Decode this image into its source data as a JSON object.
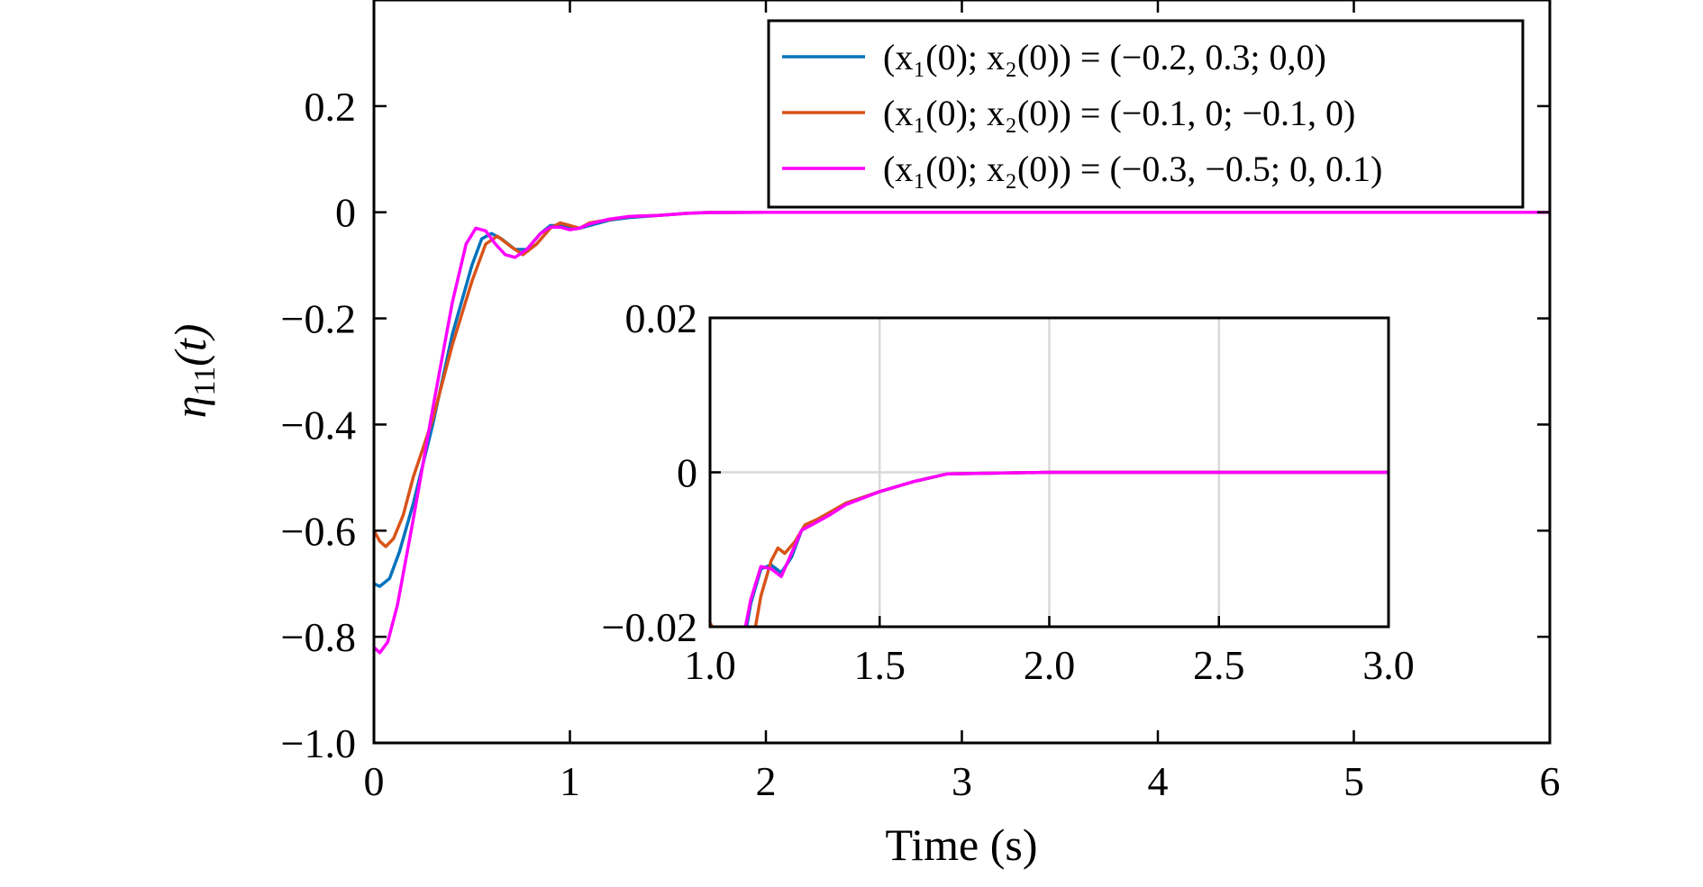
{
  "chart_data": [
    {
      "id": "main",
      "type": "line",
      "title": "",
      "xlabel": "Time (s)",
      "ylabel": {
        "base": "η",
        "sub": "11",
        "rest": "(t)"
      },
      "xlim": [
        0,
        6
      ],
      "ylim": [
        -1.0,
        0.4
      ],
      "xticks": [
        {
          "value": 0,
          "label": "0"
        },
        {
          "value": 1,
          "label": "1"
        },
        {
          "value": 2,
          "label": "2"
        },
        {
          "value": 3,
          "label": "3"
        },
        {
          "value": 4,
          "label": "4"
        },
        {
          "value": 5,
          "label": "5"
        },
        {
          "value": 6,
          "label": "6"
        }
      ],
      "yticks": [
        {
          "value": 0.2,
          "label": "0.2"
        },
        {
          "value": 0,
          "label": "0"
        },
        {
          "value": -0.2,
          "label": "−0.2"
        },
        {
          "value": -0.4,
          "label": "−0.4"
        },
        {
          "value": -0.6,
          "label": "−0.6"
        },
        {
          "value": -0.8,
          "label": "−0.8"
        },
        {
          "value": -1.0,
          "label": "−1.0"
        }
      ],
      "grid": false,
      "legend_position": "top-right",
      "series": [
        {
          "name": "(x₁(0); x₂(0)) = (−0.2, 0.3; 0,0)",
          "color": "#0072BD",
          "points": [
            [
              0,
              -0.7
            ],
            [
              0.03,
              -0.705
            ],
            [
              0.08,
              -0.69
            ],
            [
              0.13,
              -0.64
            ],
            [
              0.2,
              -0.55
            ],
            [
              0.3,
              -0.4
            ],
            [
              0.4,
              -0.23
            ],
            [
              0.5,
              -0.1
            ],
            [
              0.55,
              -0.05
            ],
            [
              0.6,
              -0.04
            ],
            [
              0.65,
              -0.05
            ],
            [
              0.72,
              -0.07
            ],
            [
              0.78,
              -0.07
            ],
            [
              0.85,
              -0.04
            ],
            [
              0.9,
              -0.025
            ],
            [
              0.95,
              -0.025
            ],
            [
              1.0,
              -0.03
            ],
            [
              1.05,
              -0.03
            ],
            [
              1.1,
              -0.025
            ],
            [
              1.2,
              -0.015
            ],
            [
              1.3,
              -0.01
            ],
            [
              1.45,
              -0.006
            ],
            [
              1.6,
              -0.002
            ],
            [
              1.7,
              -0.0005
            ],
            [
              2.0,
              0
            ],
            [
              3,
              0
            ],
            [
              4,
              0
            ],
            [
              5,
              0
            ],
            [
              6,
              0
            ]
          ]
        },
        {
          "name": "(x₁(0); x₂(0)) = (−0.1, 0; −0.1, 0)",
          "color": "#D95319",
          "points": [
            [
              0,
              -0.6
            ],
            [
              0.03,
              -0.62
            ],
            [
              0.06,
              -0.63
            ],
            [
              0.1,
              -0.615
            ],
            [
              0.15,
              -0.57
            ],
            [
              0.2,
              -0.5
            ],
            [
              0.3,
              -0.39
            ],
            [
              0.4,
              -0.25
            ],
            [
              0.5,
              -0.13
            ],
            [
              0.57,
              -0.06
            ],
            [
              0.63,
              -0.045
            ],
            [
              0.7,
              -0.065
            ],
            [
              0.76,
              -0.08
            ],
            [
              0.83,
              -0.06
            ],
            [
              0.9,
              -0.03
            ],
            [
              0.95,
              -0.02
            ],
            [
              1.0,
              -0.025
            ],
            [
              1.05,
              -0.03
            ],
            [
              1.1,
              -0.02
            ],
            [
              1.2,
              -0.014
            ],
            [
              1.3,
              -0.008
            ],
            [
              1.45,
              -0.006
            ],
            [
              1.6,
              -0.002
            ],
            [
              1.7,
              -0.0005
            ],
            [
              2.0,
              0
            ],
            [
              3,
              0
            ],
            [
              4,
              0
            ],
            [
              5,
              0
            ],
            [
              6,
              0
            ]
          ]
        },
        {
          "name": "(x₁(0); x₂(0)) = (−0.3, −0.5; 0, 0.1)",
          "color": "#FF00FF",
          "points": [
            [
              0,
              -0.82
            ],
            [
              0.03,
              -0.83
            ],
            [
              0.07,
              -0.81
            ],
            [
              0.12,
              -0.74
            ],
            [
              0.2,
              -0.58
            ],
            [
              0.3,
              -0.37
            ],
            [
              0.4,
              -0.17
            ],
            [
              0.47,
              -0.06
            ],
            [
              0.52,
              -0.03
            ],
            [
              0.57,
              -0.035
            ],
            [
              0.62,
              -0.06
            ],
            [
              0.67,
              -0.08
            ],
            [
              0.72,
              -0.085
            ],
            [
              0.78,
              -0.07
            ],
            [
              0.85,
              -0.04
            ],
            [
              0.9,
              -0.028
            ],
            [
              0.95,
              -0.028
            ],
            [
              1.0,
              -0.033
            ],
            [
              1.05,
              -0.03
            ],
            [
              1.1,
              -0.022
            ],
            [
              1.2,
              -0.013
            ],
            [
              1.3,
              -0.008
            ],
            [
              1.45,
              -0.006
            ],
            [
              1.6,
              -0.002
            ],
            [
              1.7,
              -0.0005
            ],
            [
              2.0,
              0
            ],
            [
              3,
              0
            ],
            [
              4,
              0
            ],
            [
              5,
              0
            ],
            [
              6,
              0
            ]
          ]
        }
      ]
    },
    {
      "id": "inset",
      "type": "line",
      "title": "",
      "xlabel": "",
      "ylabel": "",
      "xlim": [
        1.0,
        3.0
      ],
      "ylim": [
        -0.02,
        0.02
      ],
      "xticks": [
        {
          "value": 1.0,
          "label": "1.0"
        },
        {
          "value": 1.5,
          "label": "1.5"
        },
        {
          "value": 2.0,
          "label": "2.0"
        },
        {
          "value": 2.5,
          "label": "2.5"
        },
        {
          "value": 3.0,
          "label": "3.0"
        }
      ],
      "yticks": [
        {
          "value": 0.02,
          "label": "0.02"
        },
        {
          "value": 0,
          "label": "0"
        },
        {
          "value": -0.02,
          "label": "−0.02"
        }
      ],
      "grid": true,
      "series": [
        {
          "name": "(x₁(0); x₂(0)) = (−0.2, 0.3; 0,0)",
          "color": "#0072BD",
          "points": [
            [
              1.1,
              -0.022
            ],
            [
              1.12,
              -0.017
            ],
            [
              1.15,
              -0.0125
            ],
            [
              1.18,
              -0.012
            ],
            [
              1.21,
              -0.013
            ],
            [
              1.24,
              -0.011
            ],
            [
              1.27,
              -0.0075
            ],
            [
              1.3,
              -0.0065
            ],
            [
              1.35,
              -0.0055
            ],
            [
              1.4,
              -0.004
            ],
            [
              1.5,
              -0.0025
            ],
            [
              1.6,
              -0.0012
            ],
            [
              1.7,
              -0.0002
            ],
            [
              2.0,
              0
            ],
            [
              2.5,
              0
            ],
            [
              3.0,
              0
            ]
          ]
        },
        {
          "name": "(x₁(0); x₂(0)) = (−0.1, 0; −0.1, 0)",
          "color": "#D95319",
          "points": [
            [
              1.0,
              -0.0195
            ],
            [
              1.02,
              -0.021
            ],
            [
              1.13,
              -0.021
            ],
            [
              1.15,
              -0.016
            ],
            [
              1.18,
              -0.0115
            ],
            [
              1.2,
              -0.0098
            ],
            [
              1.22,
              -0.0105
            ],
            [
              1.25,
              -0.009
            ],
            [
              1.28,
              -0.0068
            ],
            [
              1.32,
              -0.006
            ],
            [
              1.36,
              -0.005
            ],
            [
              1.4,
              -0.004
            ],
            [
              1.5,
              -0.0025
            ],
            [
              1.6,
              -0.0012
            ],
            [
              1.7,
              -0.0002
            ],
            [
              2.0,
              0
            ],
            [
              2.5,
              0
            ],
            [
              3.0,
              0
            ]
          ]
        },
        {
          "name": "(x₁(0); x₂(0)) = (−0.3, −0.5; 0, 0.1)",
          "color": "#FF00FF",
          "points": [
            [
              1.1,
              -0.021
            ],
            [
              1.12,
              -0.0165
            ],
            [
              1.15,
              -0.0122
            ],
            [
              1.18,
              -0.0125
            ],
            [
              1.21,
              -0.0135
            ],
            [
              1.24,
              -0.0105
            ],
            [
              1.27,
              -0.0075
            ],
            [
              1.3,
              -0.0068
            ],
            [
              1.35,
              -0.0056
            ],
            [
              1.4,
              -0.0042
            ],
            [
              1.5,
              -0.0025
            ],
            [
              1.6,
              -0.0012
            ],
            [
              1.7,
              -0.0002
            ],
            [
              2.0,
              0
            ],
            [
              2.5,
              0
            ],
            [
              3.0,
              0
            ]
          ]
        }
      ]
    }
  ]
}
